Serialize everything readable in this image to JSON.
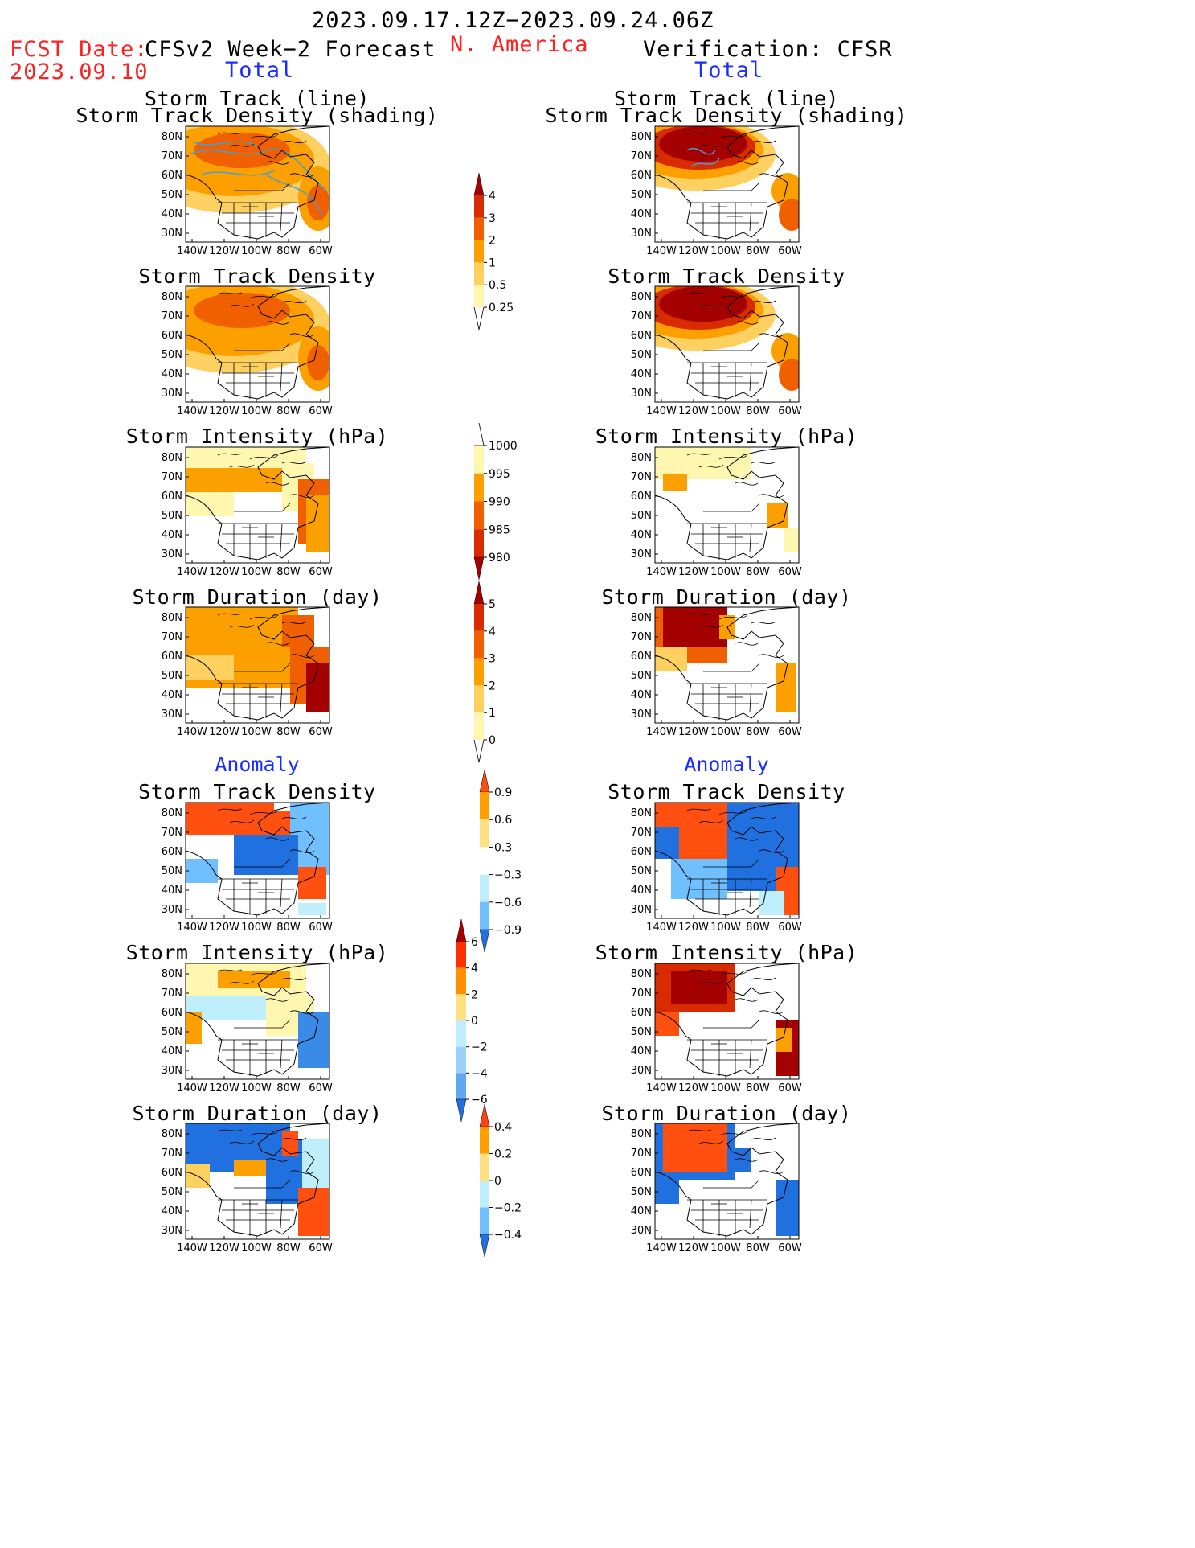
{
  "header": {
    "date_range": "2023.09.17.12Z−2023.09.24.06Z",
    "fcst_label": "FCST Date:",
    "fcst_date": "2023.09.10",
    "left_title": "CFSv2 Week−2 Forecast",
    "region": "N. America",
    "right_title": "Verification: CFSR",
    "total_left": "Total",
    "total_right": "Total",
    "anomaly_left": "Anomaly",
    "anomaly_right": "Anomaly"
  },
  "panel_titles": {
    "track_line_1": "Storm Track (line)",
    "track_line_2": "Storm Track Density (shading)",
    "density": "Storm Track Density",
    "intensity": "Storm Intensity (hPa)",
    "duration": "Storm Duration (day)"
  },
  "axes": {
    "lat_labels": [
      "80N",
      "70N",
      "60N",
      "50N",
      "40N",
      "30N"
    ],
    "lon_labels": [
      "140W",
      "120W",
      "100W",
      "80W",
      "60W"
    ]
  },
  "colorbars": [
    {
      "name": "density-total",
      "labels": [
        "4",
        "3",
        "2",
        "1",
        "0.5",
        "0.25"
      ],
      "colors": [
        "#a50000",
        "#d92b00",
        "#f06000",
        "#fca000",
        "#fdd060",
        "#fff6b0"
      ],
      "arrow": "up"
    },
    {
      "name": "intensity-total",
      "labels": [
        "1000",
        "995",
        "990",
        "985",
        "980"
      ],
      "colors": [
        "#fff6b0",
        "#fca000",
        "#f06000",
        "#d92b00",
        "#a50000"
      ],
      "arrow": "down"
    },
    {
      "name": "duration-total",
      "labels": [
        "5",
        "4",
        "3",
        "2",
        "1",
        "0"
      ],
      "colors": [
        "#a50000",
        "#d92b00",
        "#f06000",
        "#fca000",
        "#fdd060",
        "#fff6b0"
      ],
      "arrow": "up"
    },
    {
      "name": "density-anom",
      "labels": [
        "0.9",
        "0.6",
        "0.3",
        "−0.3",
        "−0.6",
        "−0.9"
      ],
      "colors": [
        "#ff5010",
        "#ffa000",
        "#ffe080",
        "#ffffff",
        "#bfeefc",
        "#70c0ff",
        "#2070e0"
      ],
      "arrow": "both"
    },
    {
      "name": "intensity-anom",
      "labels": [
        "6",
        "4",
        "2",
        "0",
        "−2",
        "−4",
        "−6"
      ],
      "colors": [
        "#a50000",
        "#ff3000",
        "#ff9000",
        "#ffe080",
        "#bfeefc",
        "#9cd0ff",
        "#60a8f0",
        "#2070e0"
      ],
      "arrow": "both"
    },
    {
      "name": "duration-anom",
      "labels": [
        "0.4",
        "0.2",
        "0",
        "−0.2",
        "−0.4"
      ],
      "colors": [
        "#ff4010",
        "#ffa000",
        "#ffe080",
        "#bfeefc",
        "#70c0ff",
        "#2070e0"
      ],
      "arrow": "both"
    }
  ],
  "palette": {
    "map_line": "#000000",
    "track_line": "#3fa0d8"
  }
}
